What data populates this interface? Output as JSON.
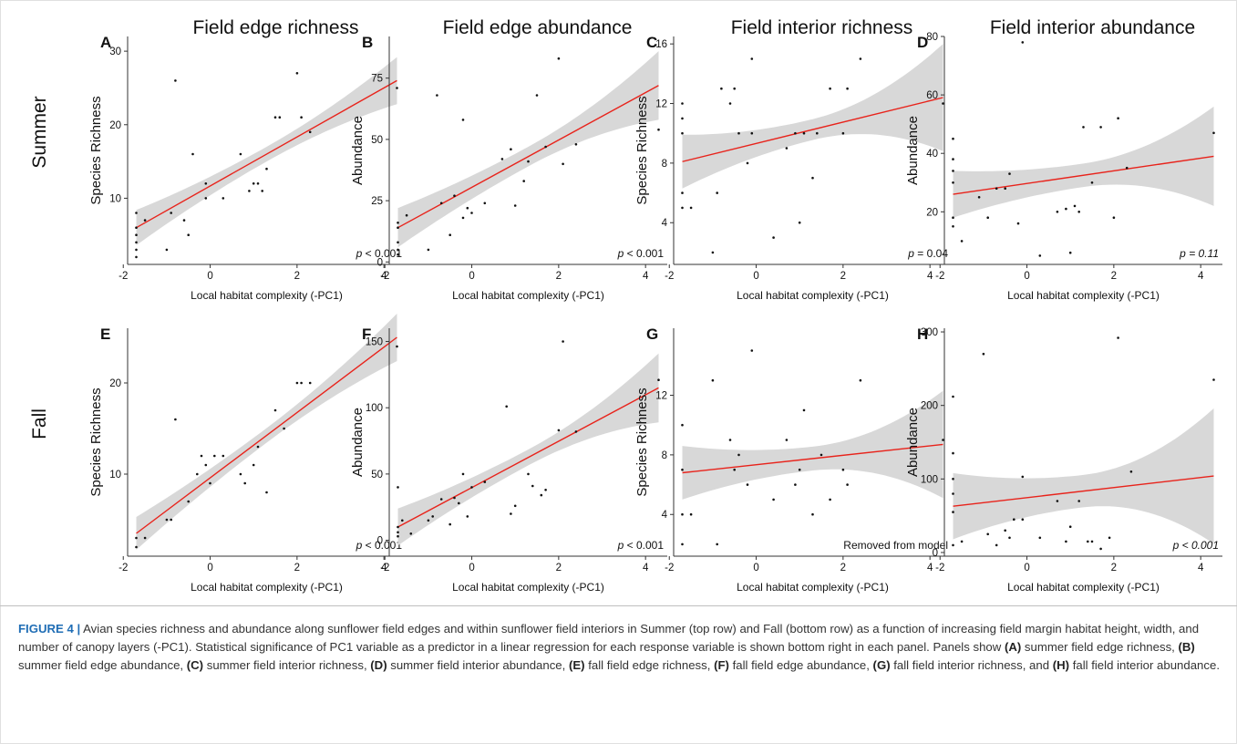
{
  "row_labels": [
    "Summer",
    "Fall"
  ],
  "column_titles": [
    "Field edge richness",
    "Field edge abundance",
    "Field interior richness",
    "Field interior abundance"
  ],
  "colors": {
    "fit_line": "#e8231b",
    "ci_band": "#d8d8d8",
    "point": "#111111"
  },
  "chart_data": [
    {
      "type": "scatter",
      "panel": "A",
      "title": "Field edge richness",
      "xlabel": "Local habitat complexity (-PC1)",
      "ylabel": "Species Richness",
      "xlim": [
        -1.9,
        4.5
      ],
      "ylim": [
        1,
        32
      ],
      "xticks": [
        -2,
        0,
        2,
        4
      ],
      "yticks": [
        10,
        20,
        30
      ],
      "p_value": "p < 0.001",
      "fit": {
        "x0": -1.7,
        "y0": 6,
        "x1": 4.3,
        "y1": 26
      },
      "ci_half_width": {
        "left": 2.4,
        "center": 1.0,
        "right": 3.2
      },
      "x": [
        -1.7,
        -1.7,
        -1.7,
        -1.7,
        -1.7,
        -1.7,
        -1.5,
        -1.0,
        -0.9,
        -0.8,
        -0.6,
        -0.5,
        -0.4,
        -0.1,
        -0.1,
        0.3,
        0.7,
        0.9,
        1.0,
        1.1,
        1.2,
        1.3,
        1.5,
        1.6,
        2.0,
        2.1,
        2.3,
        4.3
      ],
      "y": [
        2,
        3,
        4,
        5,
        6,
        8,
        7,
        3,
        8,
        26,
        7,
        5,
        16,
        10,
        12,
        10,
        16,
        11,
        12,
        12,
        11,
        14,
        21,
        21,
        27,
        21,
        19,
        25
      ]
    },
    {
      "type": "scatter",
      "panel": "B",
      "title": "Field edge abundance",
      "xlabel": "Local habitat complexity (-PC1)",
      "ylabel": "Abundance",
      "xlim": [
        -1.9,
        4.5
      ],
      "ylim": [
        -1,
        92
      ],
      "xticks": [
        -2,
        0,
        2,
        4
      ],
      "yticks": [
        0,
        25,
        50,
        75
      ],
      "p_value": "p < 0.001",
      "fit": {
        "x0": -1.7,
        "y0": 14,
        "x1": 4.3,
        "y1": 72
      },
      "ci_half_width": {
        "left": 8,
        "center": 4,
        "right": 14
      },
      "x": [
        -1.7,
        -1.7,
        -1.7,
        -1.7,
        -1.7,
        -1.5,
        -1.0,
        -0.8,
        -0.7,
        -0.5,
        -0.4,
        -0.2,
        -0.2,
        -0.1,
        0.0,
        0.3,
        0.7,
        0.9,
        1.0,
        1.2,
        1.3,
        1.5,
        1.7,
        2.0,
        2.1,
        2.4,
        4.3
      ],
      "y": [
        3,
        5,
        8,
        14,
        16,
        19,
        5,
        68,
        24,
        11,
        27,
        18,
        58,
        22,
        20,
        24,
        42,
        46,
        23,
        33,
        41,
        68,
        47,
        83,
        40,
        48,
        54
      ]
    },
    {
      "type": "scatter",
      "panel": "C",
      "title": "Field interior richness",
      "xlabel": "Local habitat complexity (-PC1)",
      "ylabel": "Species Richness",
      "xlim": [
        -1.9,
        4.5
      ],
      "ylim": [
        1.2,
        16.5
      ],
      "xticks": [
        -2,
        0,
        2,
        4
      ],
      "yticks": [
        4,
        8,
        12,
        16
      ],
      "p_value": "p = 0.04",
      "fit": {
        "x0": -1.7,
        "y0": 8.1,
        "x1": 4.3,
        "y1": 12.4
      },
      "ci_half_width": {
        "left": 1.8,
        "center": 0.7,
        "right": 3.6
      },
      "x": [
        -1.7,
        -1.7,
        -1.7,
        -1.7,
        -1.7,
        -1.5,
        -1.0,
        -0.9,
        -0.8,
        -0.6,
        -0.5,
        -0.4,
        -0.2,
        -0.1,
        -0.1,
        0.4,
        0.7,
        0.9,
        1.0,
        1.1,
        1.3,
        1.4,
        1.7,
        2.0,
        2.1,
        2.4,
        4.3
      ],
      "y": [
        5,
        6,
        10,
        11,
        12,
        5,
        2,
        6,
        13,
        12,
        13,
        10,
        8,
        15,
        10,
        3,
        9,
        10,
        4,
        10,
        7,
        10,
        13,
        10,
        13,
        15,
        12
      ]
    },
    {
      "type": "scatter",
      "panel": "D",
      "title": "Field interior abundance",
      "xlabel": "Local habitat complexity (-PC1)",
      "ylabel": "Abundance",
      "xlim": [
        -1.9,
        4.5
      ],
      "ylim": [
        2,
        80
      ],
      "xticks": [
        -2,
        0,
        2,
        4
      ],
      "yticks": [
        20,
        40,
        60,
        80
      ],
      "p_value": "p = 0.11",
      "fit": {
        "x0": -1.7,
        "y0": 26,
        "x1": 4.3,
        "y1": 39
      },
      "ci_half_width": {
        "left": 8,
        "center": 4,
        "right": 17
      },
      "x": [
        -1.7,
        -1.7,
        -1.7,
        -1.7,
        -1.7,
        -1.7,
        -1.5,
        -1.1,
        -0.9,
        -0.7,
        -0.5,
        -0.4,
        -0.2,
        -0.1,
        0.3,
        0.7,
        0.9,
        1.0,
        1.1,
        1.2,
        1.3,
        1.5,
        1.7,
        2.0,
        2.1,
        2.3,
        4.3
      ],
      "y": [
        15,
        18,
        30,
        34,
        38,
        45,
        10,
        25,
        18,
        28,
        28,
        33,
        16,
        78,
        5,
        20,
        21,
        6,
        22,
        20,
        49,
        30,
        49,
        18,
        52,
        35,
        47
      ]
    },
    {
      "type": "scatter",
      "panel": "E",
      "title": "",
      "xlabel": "Local habitat complexity (-PC1)",
      "ylabel": "Species Richness",
      "xlim": [
        -1.9,
        4.5
      ],
      "ylim": [
        1,
        26
      ],
      "xticks": [
        -2,
        0,
        2,
        4
      ],
      "yticks": [
        10,
        20
      ],
      "p_value": "p < 0.001",
      "fit": {
        "x0": -1.7,
        "y0": 3.5,
        "x1": 4.3,
        "y1": 25
      },
      "ci_half_width": {
        "left": 1.8,
        "center": 0.8,
        "right": 2.6
      },
      "x": [
        -1.7,
        -1.7,
        -1.5,
        -1.0,
        -0.9,
        -0.8,
        -0.5,
        -0.3,
        -0.2,
        -0.1,
        0.0,
        0.1,
        0.3,
        0.7,
        0.8,
        1.0,
        1.1,
        1.3,
        1.5,
        1.7,
        2.0,
        2.1,
        2.3,
        4.3
      ],
      "y": [
        2,
        3,
        3,
        5,
        5,
        16,
        7,
        10,
        12,
        11,
        9,
        12,
        12,
        10,
        9,
        11,
        13,
        8,
        17,
        15,
        20,
        20,
        20,
        24
      ]
    },
    {
      "type": "scatter",
      "panel": "F",
      "title": "",
      "xlabel": "Local habitat complexity (-PC1)",
      "ylabel": "Abundance",
      "xlim": [
        -1.9,
        4.5
      ],
      "ylim": [
        -12,
        160
      ],
      "xticks": [
        -2,
        0,
        2,
        4
      ],
      "yticks": [
        0,
        50,
        100,
        150
      ],
      "p_value": "p < 0.001",
      "fit": {
        "x0": -1.7,
        "y0": 10,
        "x1": 4.3,
        "y1": 115
      },
      "ci_half_width": {
        "left": 14,
        "center": 6,
        "right": 26
      },
      "x": [
        -1.7,
        -1.7,
        -1.7,
        -1.7,
        -1.6,
        -1.4,
        -1.0,
        -0.9,
        -0.7,
        -0.5,
        -0.4,
        -0.3,
        -0.2,
        -0.1,
        0.0,
        0.3,
        0.8,
        0.9,
        1.0,
        1.3,
        1.4,
        1.6,
        1.7,
        2.0,
        2.1,
        2.4,
        4.3
      ],
      "y": [
        3,
        6,
        10,
        40,
        15,
        5,
        15,
        18,
        31,
        12,
        32,
        28,
        50,
        18,
        40,
        44,
        101,
        20,
        26,
        50,
        41,
        34,
        38,
        83,
        150,
        82,
        121
      ]
    },
    {
      "type": "scatter",
      "panel": "G",
      "title": "",
      "xlabel": "Local habitat complexity (-PC1)",
      "ylabel": "Species Richness",
      "xlim": [
        -1.9,
        4.5
      ],
      "ylim": [
        1.2,
        16.5
      ],
      "xticks": [
        -2,
        0,
        2,
        4
      ],
      "yticks": [
        4,
        8,
        12
      ],
      "p_value": "Removed from model",
      "fit": {
        "x0": -1.7,
        "y0": 6.8,
        "x1": 4.3,
        "y1": 8.7
      },
      "ci_half_width": {
        "left": 1.8,
        "center": 0.8,
        "right": 3.6
      },
      "x": [
        -1.7,
        -1.7,
        -1.7,
        -1.7,
        -1.5,
        -1.0,
        -0.9,
        -0.6,
        -0.5,
        -0.4,
        -0.2,
        -0.1,
        0.4,
        0.7,
        0.9,
        1.0,
        1.1,
        1.3,
        1.5,
        1.7,
        2.0,
        2.1,
        2.4,
        4.3
      ],
      "y": [
        2,
        4,
        7,
        10,
        4,
        13,
        2,
        9,
        7,
        8,
        6,
        15,
        5,
        9,
        6,
        7,
        11,
        4,
        8,
        5,
        7,
        6,
        13,
        9
      ]
    },
    {
      "type": "scatter",
      "panel": "H",
      "title": "",
      "xlabel": "Local habitat complexity (-PC1)",
      "ylabel": "Abundance",
      "xlim": [
        -1.9,
        4.5
      ],
      "ylim": [
        -5,
        305
      ],
      "xticks": [
        -2,
        0,
        2,
        4
      ],
      "yticks": [
        0,
        100,
        200,
        300
      ],
      "p_value": "p < 0.001",
      "fit": {
        "x0": -1.7,
        "y0": 63,
        "x1": 4.3,
        "y1": 104
      },
      "ci_half_width": {
        "left": 45,
        "center": 22,
        "right": 92
      },
      "x": [
        -1.7,
        -1.7,
        -1.7,
        -1.7,
        -1.7,
        -1.7,
        -1.5,
        -1.0,
        -0.9,
        -0.7,
        -0.5,
        -0.4,
        -0.3,
        -0.1,
        -0.1,
        0.3,
        0.7,
        0.9,
        1.0,
        1.2,
        1.4,
        1.5,
        1.7,
        1.9,
        2.1,
        2.4,
        4.3
      ],
      "y": [
        10,
        55,
        80,
        100,
        135,
        212,
        15,
        270,
        25,
        10,
        30,
        20,
        45,
        45,
        103,
        20,
        70,
        15,
        35,
        70,
        15,
        15,
        5,
        20,
        292,
        110,
        235
      ]
    }
  ],
  "caption": {
    "label": "FIGURE 4 |",
    "text": " Avian species richness and abundance along sunflower field edges and within sunflower field interiors in Summer (top row) and Fall (bottom row) as a function of increasing field margin habitat height, width, and number of canopy layers (-PC1). Statistical significance of PC1 variable as a predictor in a linear regression for each response variable is shown bottom right in each panel. Panels show ",
    "panels": [
      {
        "tag": "(A)",
        "text": " summer field edge richness, "
      },
      {
        "tag": "(B)",
        "text": " summer field edge abundance, "
      },
      {
        "tag": "(C)",
        "text": " summer field interior richness, "
      },
      {
        "tag": "(D)",
        "text": " summer field interior abundance, "
      },
      {
        "tag": "(E)",
        "text": " fall field edge richness, "
      },
      {
        "tag": "(F)",
        "text": " fall field edge abundance, "
      },
      {
        "tag": "(G)",
        "text": " fall field interior richness, and "
      },
      {
        "tag": "(H)",
        "text": " fall field interior abundance."
      }
    ]
  }
}
